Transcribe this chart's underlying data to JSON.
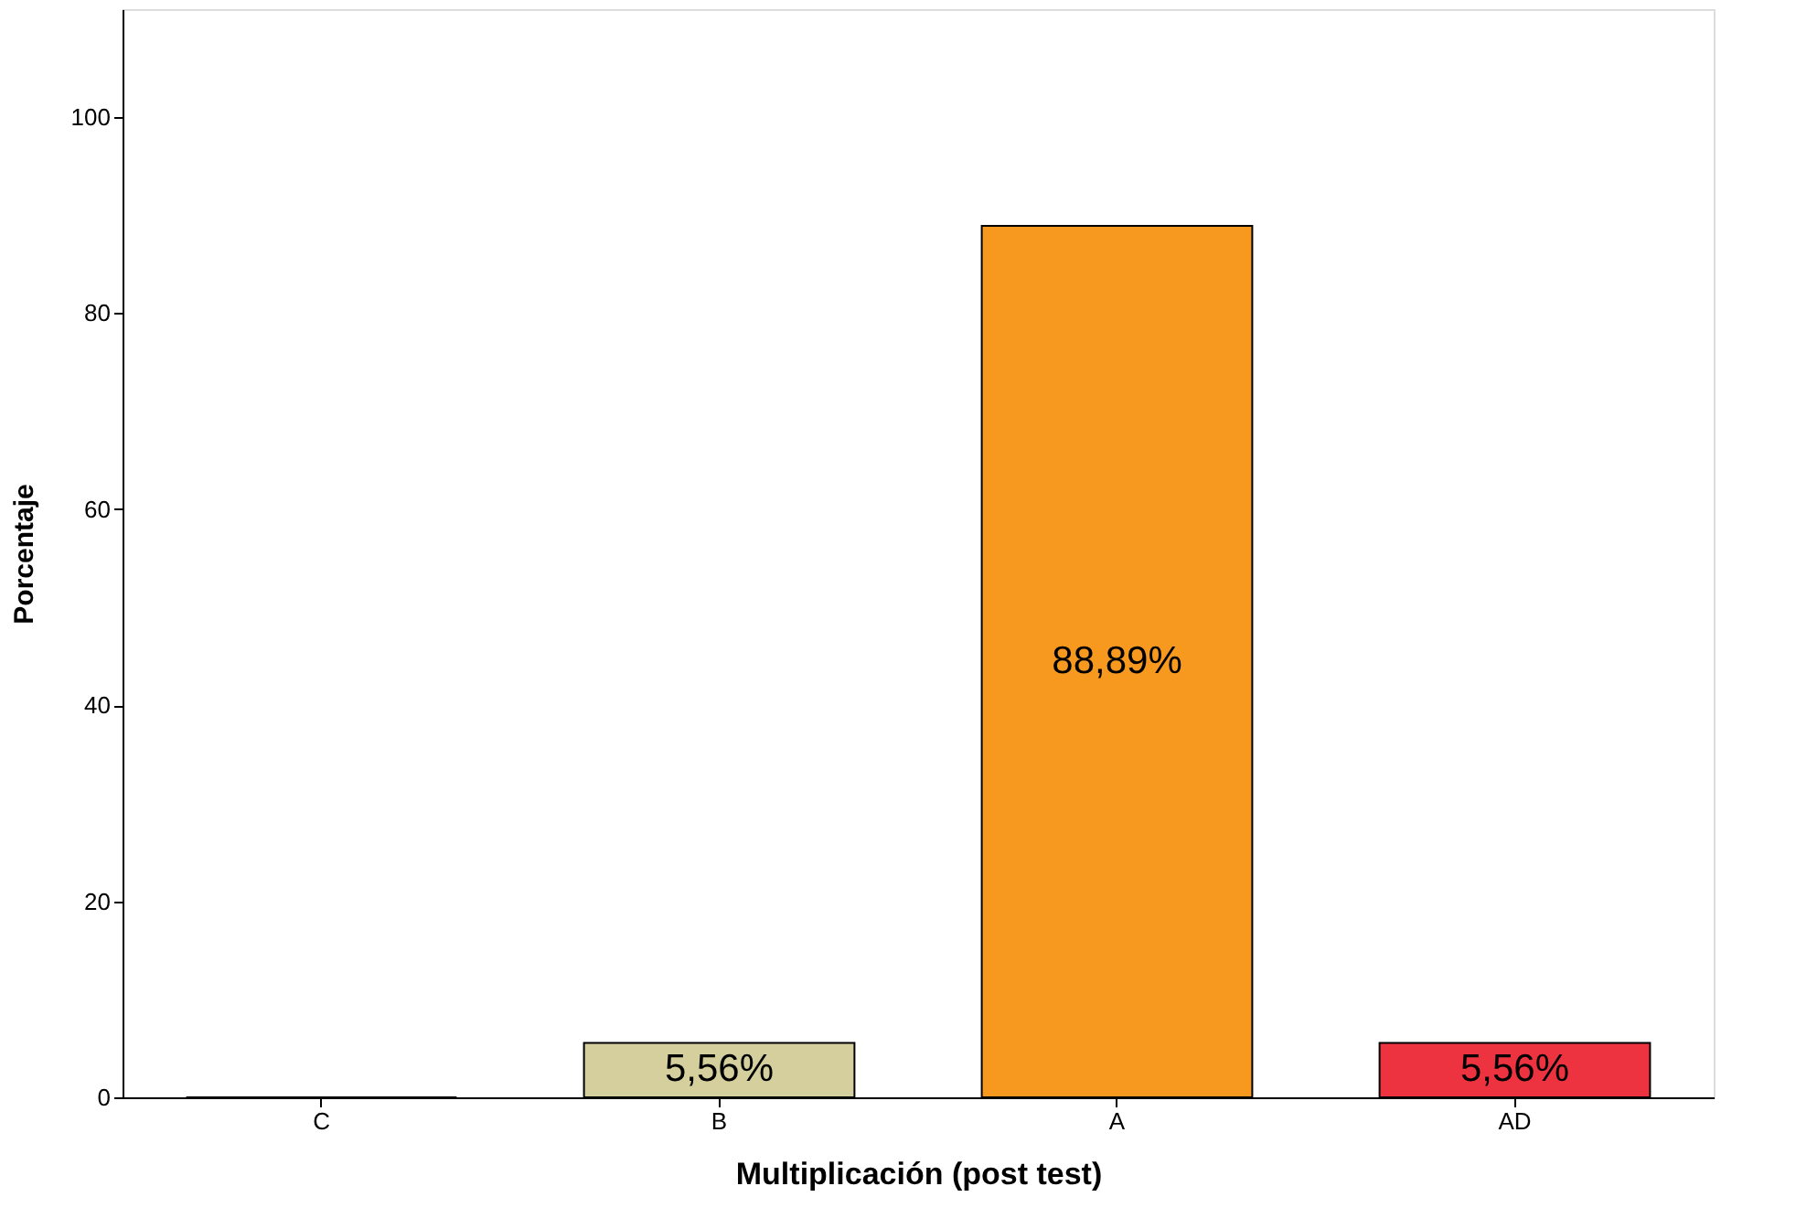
{
  "chart_data": {
    "type": "bar",
    "xlabel": "Multiplicación (post test)",
    "ylabel": "Porcentaje",
    "categories": [
      "C",
      "B",
      "A",
      "AD"
    ],
    "values": [
      0,
      5.56,
      88.89,
      5.56
    ],
    "colors": [
      null,
      "#d4cf9c",
      "#f7981f",
      "#ee3340"
    ],
    "value_labels": [
      null,
      "5,56%",
      "88,89%",
      "5,56%"
    ],
    "ylim": [
      0,
      111
    ],
    "yticks": [
      0,
      20,
      40,
      60,
      80,
      100
    ],
    "grid": false,
    "legend": false
  }
}
